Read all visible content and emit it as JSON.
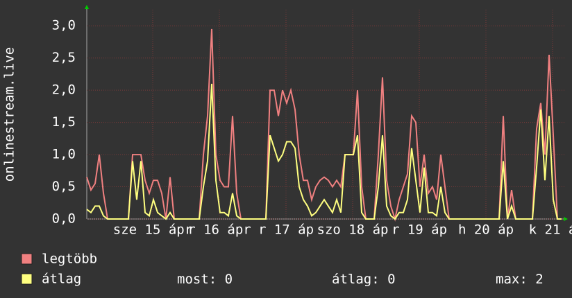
{
  "chart_data": {
    "type": "line",
    "y_label": "onlinestream.live",
    "x_labels": [
      "sze 15 ápr",
      "r 16 ápr",
      "r 17 áp",
      "szo 18 áp",
      "r 19 áp",
      "h 20 áp",
      "k 21 á"
    ],
    "ylim": [
      0,
      3.25
    ],
    "yticks": [
      {
        "value": 0,
        "label": "0,0"
      },
      {
        "value": 0.5,
        "label": "0,5"
      },
      {
        "value": 1,
        "label": "1,0"
      },
      {
        "value": 1.5,
        "label": "1,5"
      },
      {
        "value": 2,
        "label": "2,0"
      },
      {
        "value": 2.5,
        "label": "2,5"
      },
      {
        "value": 3,
        "label": "3,0"
      }
    ],
    "grid": true,
    "series": [
      {
        "name": "legtöbb",
        "color": "#f08080",
        "values": [
          0.65,
          0.45,
          0.55,
          1.0,
          0.4,
          0,
          0,
          0,
          0,
          0,
          0,
          1.0,
          1.0,
          1.0,
          0.6,
          0.4,
          0.6,
          0.6,
          0.4,
          0,
          0.65,
          0,
          0,
          0,
          0,
          0,
          0,
          0,
          1.0,
          1.6,
          2.95,
          1.0,
          0.6,
          0.5,
          0.5,
          1.6,
          0.4,
          0,
          0,
          0,
          0,
          0,
          0,
          0,
          2.0,
          2.0,
          1.6,
          2.0,
          1.8,
          2.0,
          1.7,
          1.0,
          0.6,
          0.6,
          0.3,
          0.5,
          0.6,
          0.65,
          0.6,
          0.5,
          0.6,
          0.5,
          1.0,
          1.0,
          1.0,
          2.0,
          0.5,
          0,
          0,
          0,
          1.0,
          2.2,
          0.6,
          0.2,
          0,
          0.3,
          0.5,
          0.7,
          1.6,
          1.5,
          0.5,
          1.0,
          0.4,
          0.5,
          0.3,
          1.0,
          0.5,
          0,
          0,
          0,
          0,
          0,
          0,
          0,
          0,
          0,
          0,
          0,
          0,
          0,
          1.6,
          0,
          0.45,
          0,
          0,
          0,
          0,
          0,
          1.4,
          1.8,
          1.0,
          2.55,
          1.3,
          0,
          0
        ]
      },
      {
        "name": "átlag",
        "color": "#ffff80",
        "values": [
          0.15,
          0.1,
          0.2,
          0.2,
          0.05,
          0,
          0,
          0,
          0,
          0,
          0,
          0.9,
          0.3,
          0.9,
          0.1,
          0.05,
          0.3,
          0.1,
          0.05,
          0,
          0.1,
          0,
          0,
          0,
          0,
          0,
          0,
          0,
          0.5,
          0.9,
          2.1,
          0.6,
          0.1,
          0.1,
          0.05,
          0.4,
          0.05,
          0,
          0,
          0,
          0,
          0,
          0,
          0,
          1.3,
          1.1,
          0.9,
          1.0,
          1.2,
          1.2,
          1.1,
          0.5,
          0.3,
          0.2,
          0.05,
          0.1,
          0.2,
          0.3,
          0.2,
          0.1,
          0.3,
          0.1,
          1.0,
          1.0,
          1.0,
          1.3,
          0.1,
          0,
          0,
          0,
          0.5,
          1.3,
          0.2,
          0.05,
          0,
          0.1,
          0.1,
          0.3,
          1.1,
          0.6,
          0.1,
          0.8,
          0.1,
          0.1,
          0.05,
          0.5,
          0.1,
          0,
          0,
          0,
          0,
          0,
          0,
          0,
          0,
          0,
          0,
          0,
          0,
          0,
          0.9,
          0,
          0.2,
          0,
          0,
          0,
          0,
          0,
          0.8,
          1.7,
          0.6,
          1.6,
          0.3,
          0,
          0
        ]
      }
    ],
    "stats": [
      {
        "label": "most:",
        "value": 0
      },
      {
        "label": "átlag:",
        "value": 0
      },
      {
        "label": "max:",
        "value": 2
      }
    ]
  }
}
